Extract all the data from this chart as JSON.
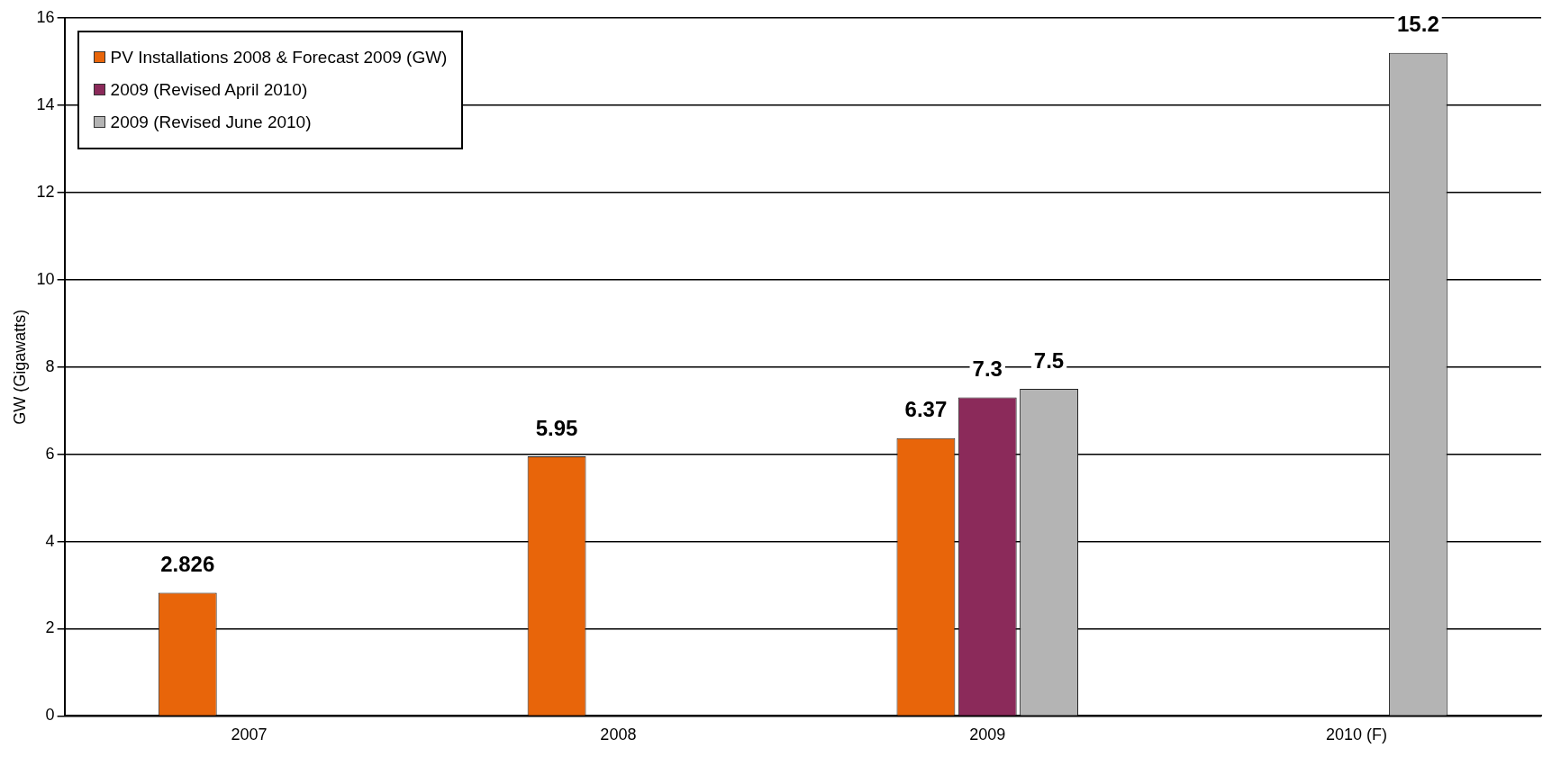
{
  "chart_data": {
    "type": "bar",
    "ylabel": "GW (Gigawatts)",
    "categories": [
      "2007",
      "2008",
      "2009",
      "2010 (F)"
    ],
    "series": [
      {
        "name": "PV Installations 2008 & Forecast 2009 (GW)",
        "color": "#e8650a",
        "values": [
          2.826,
          5.95,
          6.37,
          null
        ]
      },
      {
        "name": "2009 (Revised April 2010)",
        "color": "#8b2a5a",
        "values": [
          null,
          null,
          7.3,
          null
        ]
      },
      {
        "name": "2009 (Revised June 2010)",
        "color": "#b4b4b4",
        "values": [
          null,
          null,
          7.5,
          15.2
        ]
      }
    ],
    "ylim": [
      0,
      16
    ],
    "yticks": [
      0,
      2,
      4,
      6,
      8,
      10,
      12,
      14,
      16
    ],
    "grid": "y",
    "legend": "top left",
    "data_labels": true
  }
}
